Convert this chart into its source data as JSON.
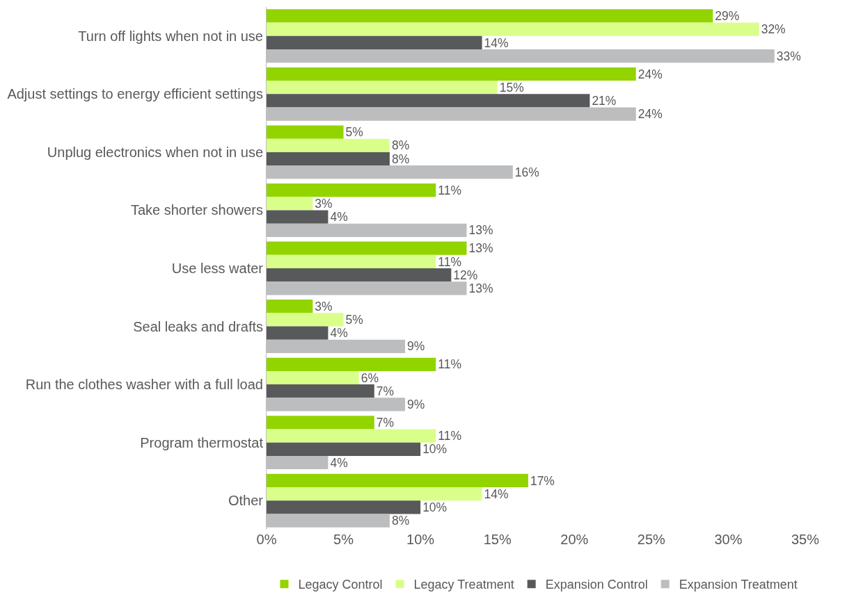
{
  "chart_data": {
    "type": "bar",
    "orientation": "horizontal",
    "categories": [
      "Turn off lights when not in use",
      "Adjust settings to energy efficient settings",
      "Unplug electronics when not in use",
      "Take shorter showers",
      "Use less water",
      "Seal leaks and drafts",
      "Run the clothes washer with a full load",
      "Program thermostat",
      "Other"
    ],
    "series": [
      {
        "name": "Legacy Control",
        "color": "#92d400",
        "values": [
          29,
          24,
          5,
          11,
          13,
          3,
          11,
          7,
          17
        ],
        "value_labels": [
          "29%",
          "24%",
          "5%",
          "11%",
          "13%",
          "3%",
          "11%",
          "7%",
          "17%"
        ]
      },
      {
        "name": "Legacy Treatment",
        "color": "#d9ff8a",
        "values": [
          32,
          15,
          8,
          3,
          11,
          5,
          6,
          11,
          14
        ],
        "value_labels": [
          "32%",
          "15%",
          "8%",
          "3%",
          "11%",
          "5%",
          "6%",
          "11%",
          "14%"
        ]
      },
      {
        "name": "Expansion Control",
        "color": "#58595b",
        "values": [
          14,
          21,
          8,
          4,
          12,
          4,
          7,
          10,
          10
        ],
        "value_labels": [
          "14%",
          "21%",
          "8%",
          "4%",
          "12%",
          "4%",
          "7%",
          "10%",
          "10%"
        ]
      },
      {
        "name": "Expansion Treatment",
        "color": "#bcbdbe",
        "values": [
          33,
          24,
          16,
          13,
          13,
          9,
          9,
          4,
          8
        ],
        "value_labels": [
          "33%",
          "24%",
          "16%",
          "13%",
          "13%",
          "9%",
          "9%",
          "4%",
          "8%"
        ]
      }
    ],
    "xlim": [
      0,
      35
    ],
    "xticks": [
      {
        "value": 0,
        "label": "0%"
      },
      {
        "value": 5,
        "label": "5%"
      },
      {
        "value": 10,
        "label": "10%"
      },
      {
        "value": 15,
        "label": "15%"
      },
      {
        "value": 20,
        "label": "20%"
      },
      {
        "value": 25,
        "label": "25%"
      },
      {
        "value": 30,
        "label": "30%"
      },
      {
        "value": 35,
        "label": "35%"
      }
    ],
    "legend": "bottom"
  }
}
